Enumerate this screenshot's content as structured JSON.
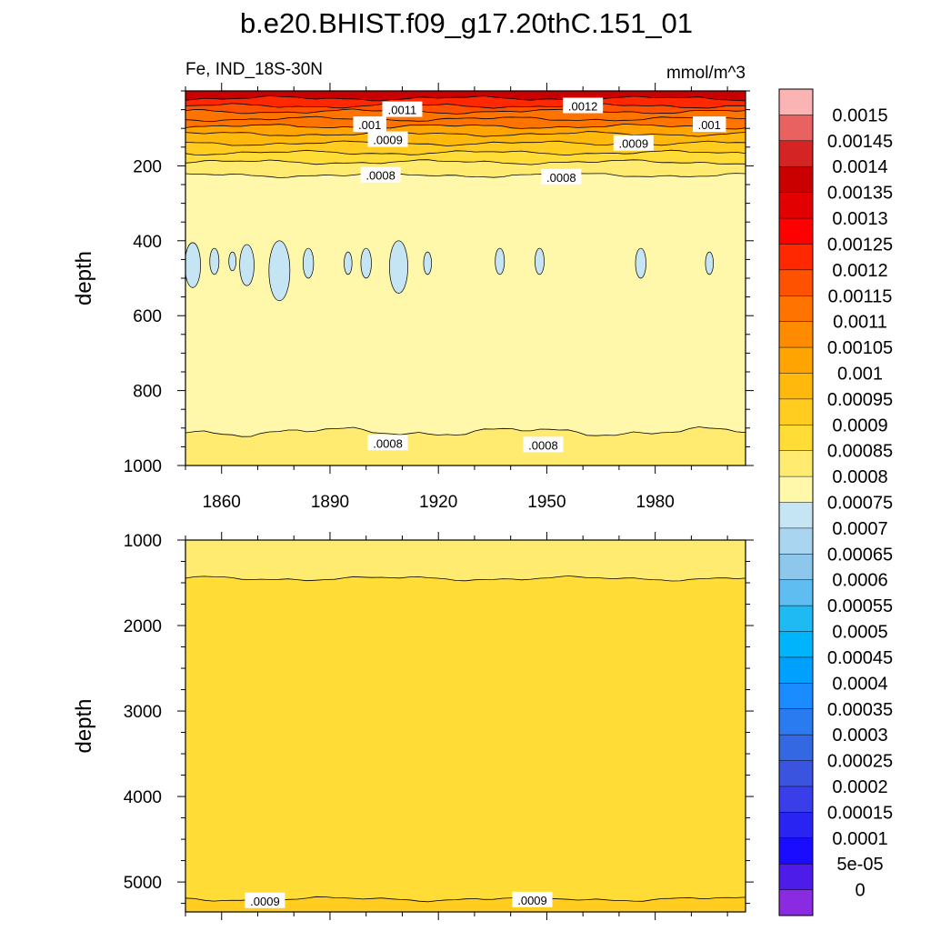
{
  "chart_data": {
    "type": "heatmap",
    "title": "b.e20.BHIST.f09_g17.20thC.151_01",
    "variable_label": "Fe, IND_18S-30N",
    "units_label": "mmol/m^3",
    "x_tick_labels": [
      "1860",
      "1890",
      "1920",
      "1950",
      "1980"
    ],
    "x_ticks": [
      1860,
      1890,
      1920,
      1950,
      1980
    ],
    "xlim": [
      1850,
      2005
    ],
    "panels": [
      {
        "ylabel": "depth",
        "ylim": [
          0,
          1000
        ],
        "y_tick_labels": [
          "200",
          "400",
          "600",
          "800",
          "1000"
        ],
        "y_ticks": [
          200,
          400,
          600,
          800,
          1000
        ],
        "layers": [
          {
            "from": 0,
            "to": 20,
            "value": 0.00135
          },
          {
            "from": 20,
            "to": 40,
            "value": 0.00125
          },
          {
            "from": 40,
            "to": 55,
            "value": 0.0012
          },
          {
            "from": 55,
            "to": 75,
            "value": 0.00115
          },
          {
            "from": 75,
            "to": 95,
            "value": 0.0011
          },
          {
            "from": 95,
            "to": 115,
            "value": 0.00105
          },
          {
            "from": 115,
            "to": 140,
            "value": 0.001
          },
          {
            "from": 140,
            "to": 165,
            "value": 0.00095
          },
          {
            "from": 165,
            "to": 190,
            "value": 0.0009
          },
          {
            "from": 190,
            "to": 225,
            "value": 0.00085
          },
          {
            "from": 225,
            "to": 910,
            "value": 0.00078
          },
          {
            "from": 910,
            "to": 1000,
            "value": 0.00083
          }
        ],
        "low_patches": [
          {
            "year": 1852,
            "top": 405,
            "bottom": 525,
            "value": 0.00072
          },
          {
            "year": 1858,
            "top": 420,
            "bottom": 490,
            "value": 0.00072
          },
          {
            "year": 1863,
            "top": 430,
            "bottom": 480,
            "value": 0.00072
          },
          {
            "year": 1867,
            "top": 410,
            "bottom": 520,
            "value": 0.00072
          },
          {
            "year": 1876,
            "top": 400,
            "bottom": 560,
            "value": 0.00072
          },
          {
            "year": 1884,
            "top": 420,
            "bottom": 500,
            "value": 0.00072
          },
          {
            "year": 1895,
            "top": 430,
            "bottom": 490,
            "value": 0.00072
          },
          {
            "year": 1900,
            "top": 420,
            "bottom": 500,
            "value": 0.00072
          },
          {
            "year": 1909,
            "top": 400,
            "bottom": 540,
            "value": 0.00072
          },
          {
            "year": 1917,
            "top": 430,
            "bottom": 490,
            "value": 0.00072
          },
          {
            "year": 1937,
            "top": 420,
            "bottom": 490,
            "value": 0.00072
          },
          {
            "year": 1948,
            "top": 420,
            "bottom": 490,
            "value": 0.00072
          },
          {
            "year": 1976,
            "top": 420,
            "bottom": 500,
            "value": 0.00072
          },
          {
            "year": 1995,
            "top": 430,
            "bottom": 490,
            "value": 0.00072
          }
        ],
        "contour_labels": [
          {
            "text": ".0011",
            "year": 1910,
            "depth": 50
          },
          {
            "text": ".0012",
            "year": 1960,
            "depth": 40
          },
          {
            "text": ".001",
            "year": 1901,
            "depth": 90
          },
          {
            "text": ".001",
            "year": 1995,
            "depth": 90
          },
          {
            "text": ".0009",
            "year": 1906,
            "depth": 130
          },
          {
            "text": ".0009",
            "year": 1974,
            "depth": 140
          },
          {
            "text": ".0008",
            "year": 1904,
            "depth": 225
          },
          {
            "text": ".0008",
            "year": 1954,
            "depth": 230
          },
          {
            "text": ".0008",
            "year": 1906,
            "depth": 940
          },
          {
            "text": ".0008",
            "year": 1949,
            "depth": 945
          }
        ]
      },
      {
        "ylabel": "depth",
        "ylim": [
          1000,
          5350
        ],
        "y_tick_labels": [
          "1000",
          "2000",
          "3000",
          "4000",
          "5000"
        ],
        "y_ticks": [
          1000,
          2000,
          3000,
          4000,
          5000
        ],
        "layers": [
          {
            "from": 1000,
            "to": 1450,
            "value": 0.00083
          },
          {
            "from": 1450,
            "to": 5200,
            "value": 0.00088
          },
          {
            "from": 5200,
            "to": 5350,
            "value": 0.00092
          }
        ],
        "contour_labels": [
          {
            "text": ".0009",
            "year": 1872,
            "depth": 5220
          },
          {
            "text": ".0009",
            "year": 1946,
            "depth": 5210
          }
        ]
      }
    ],
    "colorbar": {
      "labels": [
        "0.0015",
        "0.00145",
        "0.0014",
        "0.00135",
        "0.0013",
        "0.00125",
        "0.0012",
        "0.00115",
        "0.0011",
        "0.00105",
        "0.001",
        "0.00095",
        "0.0009",
        "0.00085",
        "0.0008",
        "0.00075",
        "0.0007",
        "0.00065",
        "0.0006",
        "0.00055",
        "0.0005",
        "0.00045",
        "0.0004",
        "0.00035",
        "0.0003",
        "0.00025",
        "0.0002",
        "0.00015",
        "0.0001",
        "5e-05",
        "0"
      ],
      "colors": [
        "#fbb4b4",
        "#e86262",
        "#d42424",
        "#ca0000",
        "#e30000",
        "#ff0000",
        "#ff2800",
        "#ff5200",
        "#ff7300",
        "#ff8c00",
        "#ffa400",
        "#ffb90c",
        "#ffcc1f",
        "#ffdd36",
        "#ffeb70",
        "#fff8aa",
        "#c5e5f5",
        "#a9d5f1",
        "#8ec7ec",
        "#5fbdf1",
        "#1fbaf4",
        "#00b4fb",
        "#00a0ff",
        "#1a8cff",
        "#2a7af0",
        "#3468e3",
        "#3a54e0",
        "#3a3ee8",
        "#2a24f2",
        "#1a0cff",
        "#4d1ce8",
        "#8a2be2"
      ]
    }
  }
}
